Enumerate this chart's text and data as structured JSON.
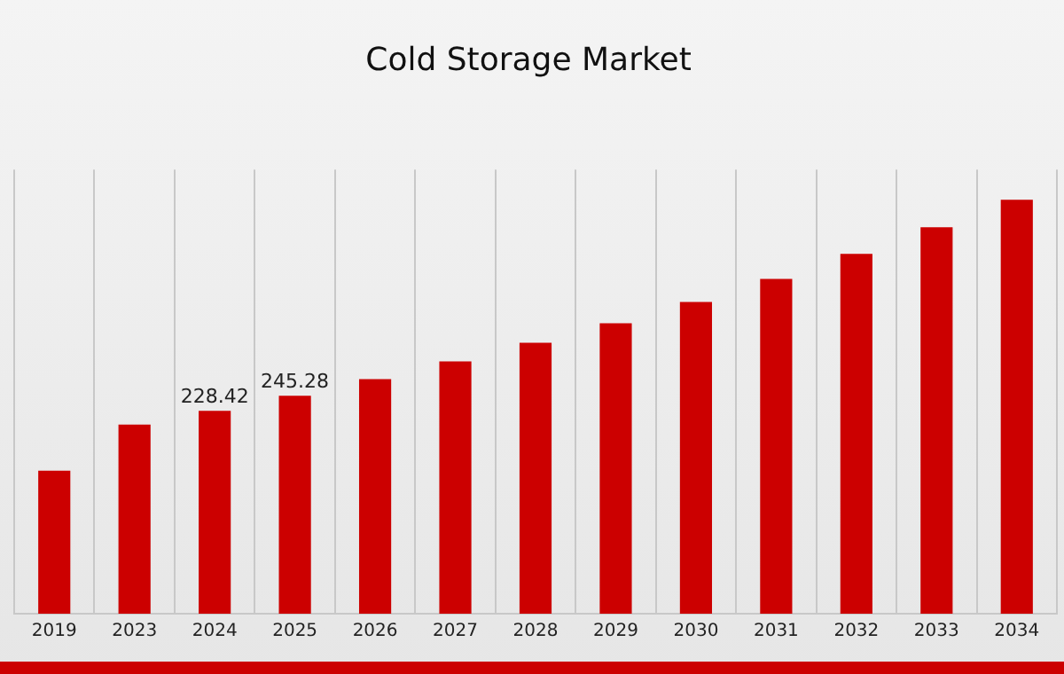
{
  "chart_data": {
    "type": "bar",
    "title": "Cold Storage Market",
    "categories": [
      "2019",
      "2023",
      "2024",
      "2025",
      "2026",
      "2027",
      "2028",
      "2029",
      "2030",
      "2031",
      "2032",
      "2033",
      "2034"
    ],
    "values": [
      161,
      213,
      228.42,
      245.28,
      264,
      284,
      305,
      327,
      351,
      377,
      405,
      435,
      466
    ],
    "value_labels": [
      null,
      null,
      "228.42",
      "245.28",
      null,
      null,
      null,
      null,
      null,
      null,
      null,
      null,
      null
    ],
    "color": "#cc0000",
    "grid": "x",
    "legend": false
  }
}
